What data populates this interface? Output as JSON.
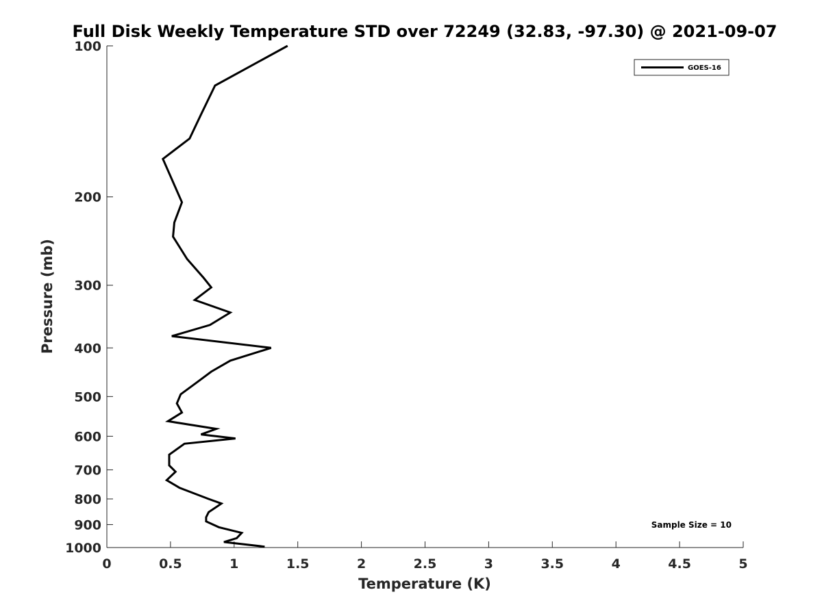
{
  "chart_data": {
    "type": "line",
    "title": "Full Disk Weekly Temperature STD over 72249 (32.83, -97.30) @ 2021-09-07",
    "xlabel": "Temperature (K)",
    "ylabel": "Pressure (mb)",
    "xlim": [
      0,
      5
    ],
    "ylim": [
      100,
      1000
    ],
    "y_scale": "log",
    "y_reversed": true,
    "x_ticks": [
      "0",
      "0.5",
      "1",
      "1.5",
      "2",
      "2.5",
      "3",
      "3.5",
      "4",
      "4.5",
      "5"
    ],
    "y_ticks": [
      "100",
      "200",
      "300",
      "400",
      "500",
      "600",
      "700",
      "800",
      "900",
      "1000"
    ],
    "grid": false,
    "legend_position": "top-right",
    "annotation": "Sample Size = 10",
    "series": [
      {
        "name": "GOES-16",
        "color": "#000000",
        "x": [
          1.42,
          0.85,
          0.74,
          0.65,
          0.44,
          0.59,
          0.53,
          0.52,
          0.63,
          0.76,
          0.82,
          0.69,
          0.97,
          0.81,
          0.51,
          1.29,
          0.97,
          0.82,
          0.71,
          0.58,
          0.55,
          0.59,
          0.48,
          0.86,
          0.74,
          1.01,
          0.61,
          0.49,
          0.49,
          0.54,
          0.47,
          0.57,
          0.8,
          0.9,
          0.86,
          0.8,
          0.78,
          0.78,
          0.88,
          1.06,
          1.02,
          0.92,
          1.24
        ],
        "y": [
          100,
          120,
          137,
          153,
          168,
          205,
          225,
          240,
          266,
          290,
          303,
          321,
          340,
          360,
          379,
          400,
          424,
          446,
          468,
          495,
          516,
          538,
          560,
          580,
          595,
          606,
          621,
          653,
          686,
          706,
          734,
          760,
          800,
          817,
          830,
          850,
          870,
          887,
          911,
          935,
          958,
          975,
          996
        ]
      }
    ]
  }
}
